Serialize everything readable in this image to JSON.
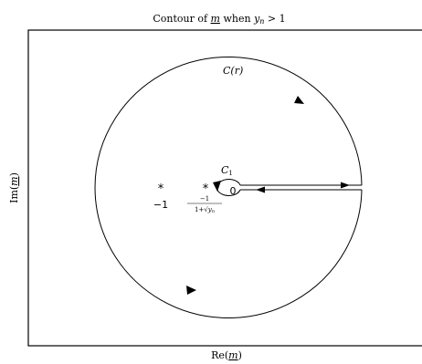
{
  "figure": {
    "title": "Contour of m when y_n > 1",
    "title_parts": {
      "lead": "Contour of ",
      "var": "m",
      "mid": " when ",
      "y": "y",
      "sub": "n",
      "tail": " > 1"
    },
    "xlabel": "Re(m)",
    "xlabel_parts": {
      "fn": "Re(",
      "var": "m",
      "close": ")"
    },
    "ylabel": "Im(m)",
    "ylabel_parts": {
      "fn": "Im(",
      "var": "m",
      "close": ")"
    }
  },
  "contours": {
    "outer_label": "C(r)",
    "outer_parts": {
      "letter": "C",
      "arg": "(r)"
    },
    "inner_label": "C1",
    "inner_parts": {
      "letter": "C",
      "sub": "1"
    }
  },
  "points": {
    "minus_one_label": "−1",
    "zero_label": "0",
    "root_label": "−1 / (1+√y_n)",
    "root_parts": {
      "num": "−1",
      "den_lead": "1+",
      "den_rad": "√",
      "den_y": "y",
      "den_sub": "n"
    }
  }
}
